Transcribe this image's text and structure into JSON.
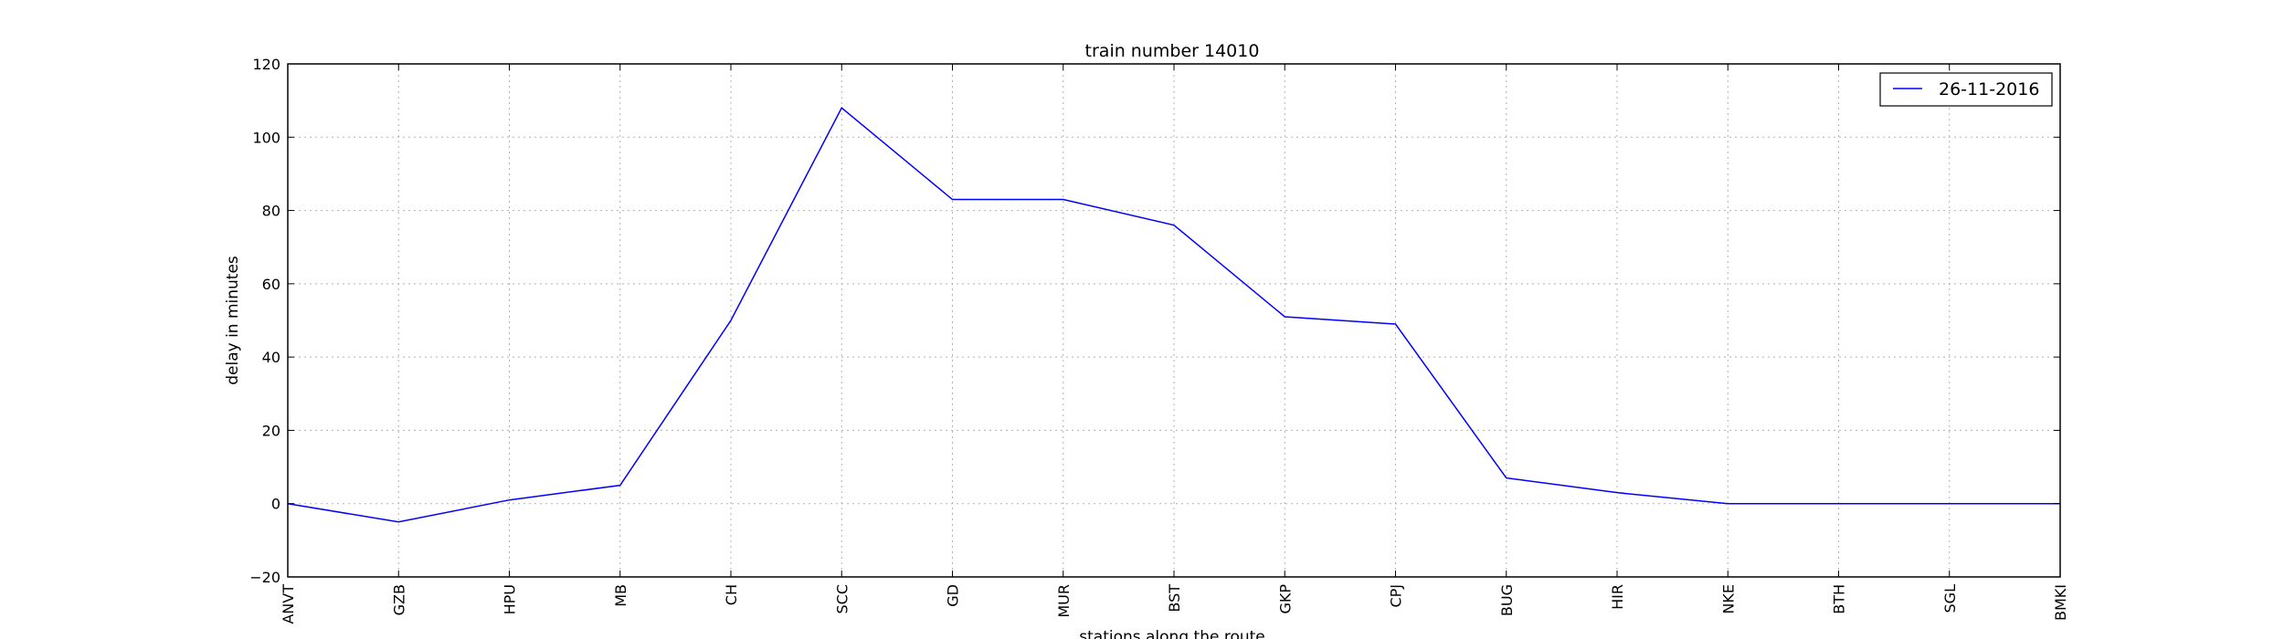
{
  "chart_data": {
    "type": "line",
    "title": "train number 14010",
    "xlabel": "stations along the route",
    "ylabel": "delay in minutes",
    "categories": [
      "ANVT",
      "GZB",
      "HPU",
      "MB",
      "CH",
      "SCC",
      "GD",
      "MUR",
      "BST",
      "GKP",
      "CPJ",
      "BUG",
      "HIR",
      "NKE",
      "BTH",
      "SGL",
      "BMKI"
    ],
    "series": [
      {
        "name": "26-11-2016",
        "color": "#0000ff",
        "values": [
          0,
          -5,
          1,
          5,
          50,
          108,
          83,
          83,
          76,
          51,
          49,
          7,
          3,
          0,
          0,
          0,
          0
        ]
      }
    ],
    "ylim": [
      -20,
      120
    ],
    "yticks": [
      "−20",
      "0",
      "20",
      "40",
      "60",
      "80",
      "100",
      "120"
    ],
    "grid": true,
    "legend_position": "top-right"
  }
}
